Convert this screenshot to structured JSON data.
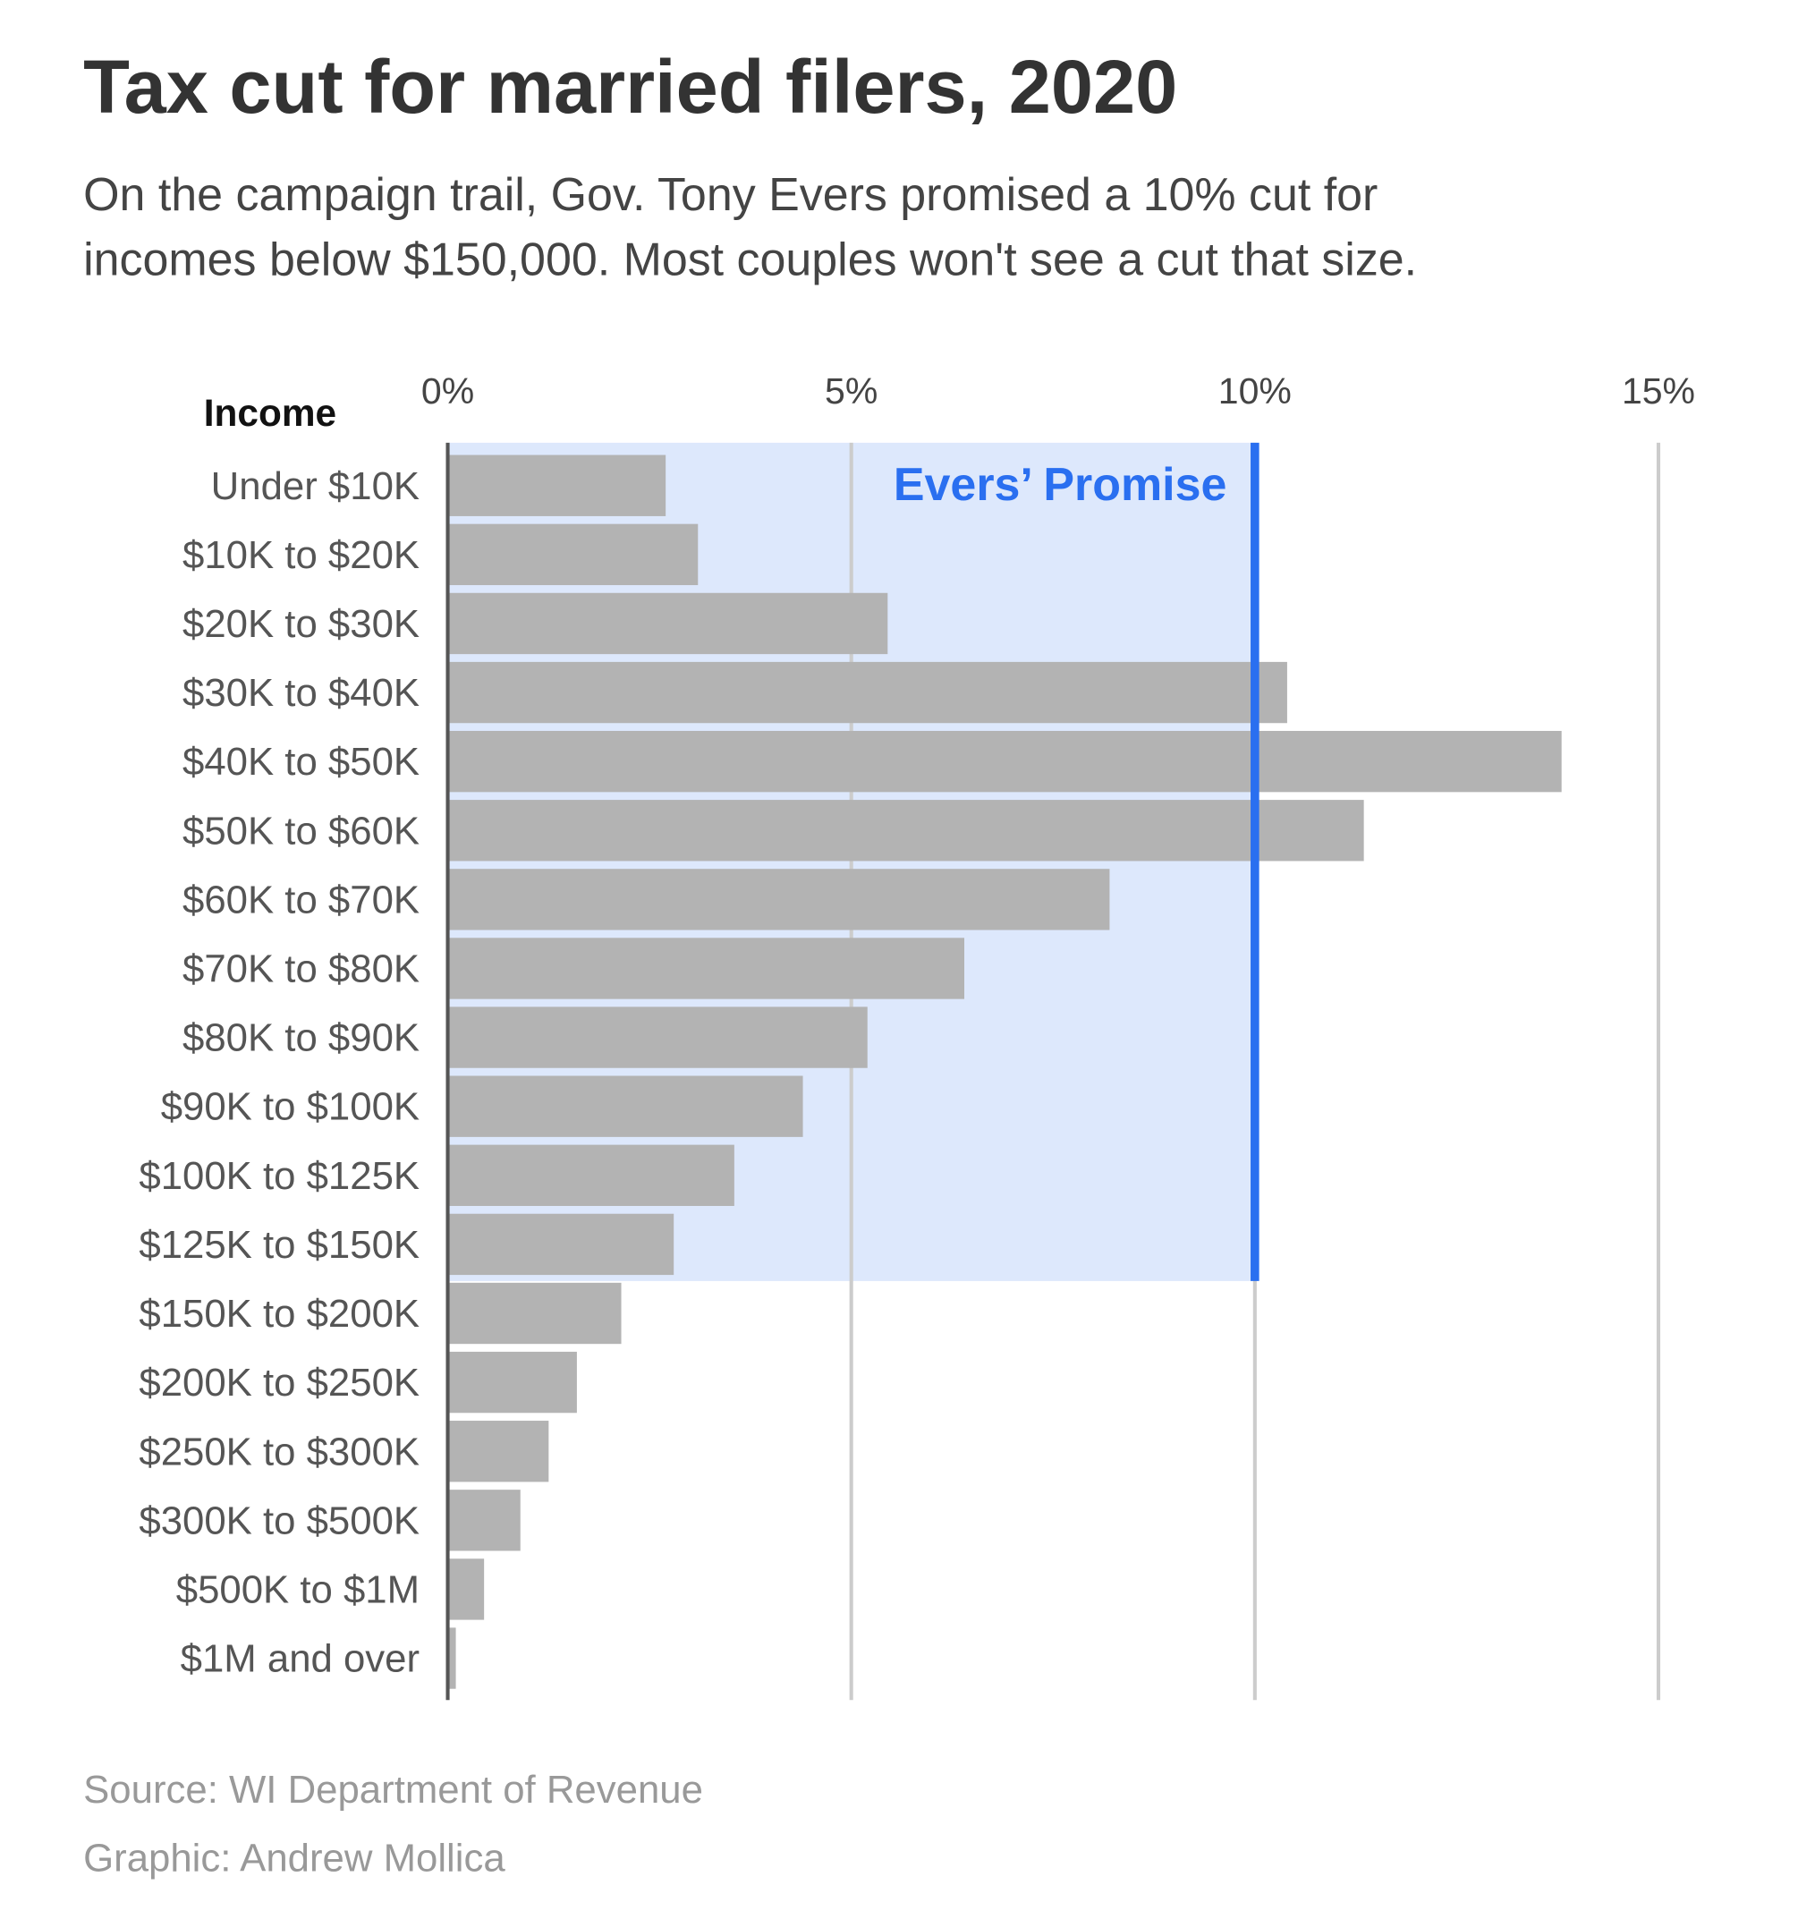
{
  "title": "Tax cut for married filers, 2020",
  "subtitle_lines": [
    "On the campaign trail, Gov. Tony Evers promised a 10% cut for",
    "incomes below $150,000. Most couples won't see a cut that size."
  ],
  "source": "Source: WI Department of Revenue",
  "credit": "Graphic: Andrew Mollica",
  "colors": {
    "bar": "#b3b3b3",
    "promise_line": "#2a6ff0",
    "promise_fill": "#dde8fc",
    "grid": "#cccccc",
    "title": "#333333"
  },
  "chart_data": {
    "type": "bar",
    "orientation": "horizontal",
    "category_header": "Income",
    "categories": [
      "Under $10K",
      "$10K to $20K",
      "$20K to $30K",
      "$30K to $40K",
      "$40K to $50K",
      "$50K to $60K",
      "$60K to $70K",
      "$70K to $80K",
      "$80K to $90K",
      "$90K to $100K",
      "$100K to $125K",
      "$125K to $150K",
      "$150K to $200K",
      "$200K to $250K",
      "$250K to $300K",
      "$300K to $500K",
      "$500K to $1M",
      "$1M and over"
    ],
    "values": [
      2.7,
      3.1,
      5.45,
      10.4,
      13.8,
      11.35,
      8.2,
      6.4,
      5.2,
      4.4,
      3.55,
      2.8,
      2.15,
      1.6,
      1.25,
      0.9,
      0.45,
      0.1
    ],
    "xlim": [
      0,
      15
    ],
    "ticks": [
      0,
      5,
      10,
      15
    ],
    "tick_labels": [
      "0%",
      "5%",
      "10%",
      "15%"
    ],
    "grid": true,
    "annotation": {
      "label": "Evers’ Promise",
      "value": 10,
      "applies_to_rows_through": "$125K to $150K"
    }
  }
}
